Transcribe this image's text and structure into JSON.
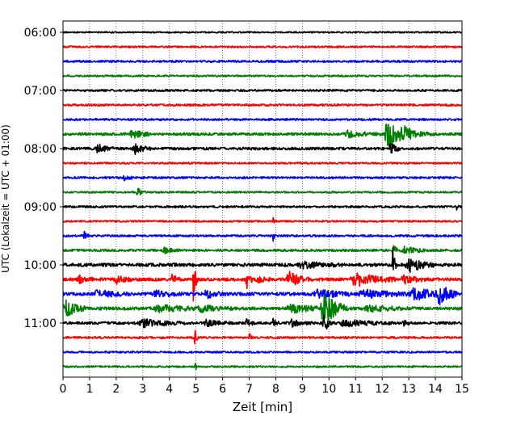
{
  "chart_data": {
    "type": "line",
    "xlabel": "Zeit  [min]",
    "ylabel": "UTC (Lokalzeit = UTC + 01:00)",
    "xlim": [
      0,
      15
    ],
    "x_ticks": [
      "0",
      "1",
      "2",
      "3",
      "4",
      "5",
      "6",
      "7",
      "8",
      "9",
      "10",
      "11",
      "12",
      "13",
      "14",
      "15"
    ],
    "y_tick_labels": [
      "06:00",
      "07:00",
      "08:00",
      "09:00",
      "10:00",
      "11:00"
    ],
    "grid": "vertical dotted lines at each minute",
    "trace_interval_minutes": 15,
    "trace_color_cycle": [
      "#000000",
      "#ff0000",
      "#0000ff",
      "#008000"
    ],
    "traces": [
      {
        "time": "06:00",
        "noise": 0.1,
        "events": []
      },
      {
        "time": "06:15",
        "noise": 0.12,
        "events": []
      },
      {
        "time": "06:30",
        "noise": 0.14,
        "events": []
      },
      {
        "time": "06:45",
        "noise": 0.12,
        "events": []
      },
      {
        "time": "07:00",
        "noise": 0.14,
        "events": []
      },
      {
        "time": "07:15",
        "noise": 0.14,
        "events": []
      },
      {
        "time": "07:30",
        "noise": 0.14,
        "events": []
      },
      {
        "time": "07:45",
        "noise": 0.18,
        "events": [
          {
            "t": 2.6,
            "amp": 0.5,
            "dur": 0.9
          },
          {
            "t": 10.7,
            "amp": 0.4,
            "dur": 1.3
          },
          {
            "t": 12.2,
            "amp": 2.0,
            "dur": 0.9
          },
          {
            "t": 12.8,
            "amp": 0.6,
            "dur": 1.2
          }
        ]
      },
      {
        "time": "08:00",
        "noise": 0.18,
        "events": [
          {
            "t": 1.3,
            "amp": 0.6,
            "dur": 0.6
          },
          {
            "t": 2.7,
            "amp": 0.7,
            "dur": 0.6
          },
          {
            "t": 12.3,
            "amp": 0.8,
            "dur": 0.4
          }
        ]
      },
      {
        "time": "08:15",
        "noise": 0.12,
        "events": []
      },
      {
        "time": "08:30",
        "noise": 0.14,
        "events": [
          {
            "t": 2.3,
            "amp": 0.6,
            "dur": 0.3
          }
        ]
      },
      {
        "time": "08:45",
        "noise": 0.12,
        "events": [
          {
            "t": 2.8,
            "amp": 0.6,
            "dur": 0.3
          }
        ]
      },
      {
        "time": "09:00",
        "noise": 0.14,
        "events": [
          {
            "t": 14.8,
            "amp": 0.6,
            "dur": 0.1
          }
        ]
      },
      {
        "time": "09:15",
        "noise": 0.12,
        "events": [
          {
            "t": 7.9,
            "amp": 0.6,
            "dur": 0.1
          }
        ]
      },
      {
        "time": "09:30",
        "noise": 0.14,
        "events": [
          {
            "t": 0.8,
            "amp": 0.5,
            "dur": 0.2
          },
          {
            "t": 7.9,
            "amp": 0.6,
            "dur": 0.1
          }
        ]
      },
      {
        "time": "09:45",
        "noise": 0.16,
        "events": [
          {
            "t": 3.8,
            "amp": 0.4,
            "dur": 0.6
          },
          {
            "t": 12.4,
            "amp": 0.9,
            "dur": 0.2
          },
          {
            "t": 12.8,
            "amp": 0.6,
            "dur": 0.8
          }
        ]
      },
      {
        "time": "10:00",
        "noise": 0.22,
        "events": [
          {
            "t": 9.0,
            "amp": 0.4,
            "dur": 1.6
          },
          {
            "t": 12.4,
            "amp": 2.2,
            "dur": 0.15
          },
          {
            "t": 13.0,
            "amp": 0.9,
            "dur": 1.0
          }
        ]
      },
      {
        "time": "10:15",
        "noise": 0.22,
        "events": [
          {
            "t": 0.6,
            "amp": 0.5,
            "dur": 0.6
          },
          {
            "t": 2.0,
            "amp": 0.5,
            "dur": 0.6
          },
          {
            "t": 4.1,
            "amp": 0.7,
            "dur": 0.3
          },
          {
            "t": 4.9,
            "amp": 2.8,
            "dur": 0.15
          },
          {
            "t": 6.9,
            "amp": 1.6,
            "dur": 0.2
          },
          {
            "t": 7.3,
            "amp": 0.4,
            "dur": 0.5
          },
          {
            "t": 8.5,
            "amp": 1.0,
            "dur": 0.8
          },
          {
            "t": 11.0,
            "amp": 0.9,
            "dur": 1.5
          },
          {
            "t": 12.8,
            "amp": 0.6,
            "dur": 0.8
          }
        ]
      },
      {
        "time": "10:30",
        "noise": 0.22,
        "events": [
          {
            "t": 1.3,
            "amp": 0.5,
            "dur": 1.2
          },
          {
            "t": 3.5,
            "amp": 0.4,
            "dur": 1.0
          },
          {
            "t": 5.4,
            "amp": 0.6,
            "dur": 0.7
          },
          {
            "t": 9.6,
            "amp": 0.6,
            "dur": 1.3
          },
          {
            "t": 11.3,
            "amp": 0.5,
            "dur": 2.0
          },
          {
            "t": 13.2,
            "amp": 0.8,
            "dur": 1.5
          },
          {
            "t": 14.1,
            "amp": 1.4,
            "dur": 0.7
          }
        ]
      },
      {
        "time": "10:45",
        "noise": 0.22,
        "events": [
          {
            "t": 0.1,
            "amp": 1.2,
            "dur": 0.8
          },
          {
            "t": 3.6,
            "amp": 0.5,
            "dur": 1.5
          },
          {
            "t": 5.2,
            "amp": 0.4,
            "dur": 1.2
          },
          {
            "t": 8.6,
            "amp": 0.5,
            "dur": 1.8
          },
          {
            "t": 9.8,
            "amp": 2.2,
            "dur": 0.9
          },
          {
            "t": 11.5,
            "amp": 0.4,
            "dur": 1.5
          }
        ]
      },
      {
        "time": "11:00",
        "noise": 0.18,
        "events": [
          {
            "t": 3.0,
            "amp": 0.5,
            "dur": 1.6
          },
          {
            "t": 5.4,
            "amp": 0.4,
            "dur": 1.0
          },
          {
            "t": 6.9,
            "amp": 0.6,
            "dur": 0.3
          },
          {
            "t": 7.9,
            "amp": 0.5,
            "dur": 0.2
          },
          {
            "t": 8.6,
            "amp": 0.4,
            "dur": 0.8
          },
          {
            "t": 9.8,
            "amp": 1.5,
            "dur": 0.3
          },
          {
            "t": 10.6,
            "amp": 0.4,
            "dur": 2.0
          },
          {
            "t": 12.8,
            "amp": 0.5,
            "dur": 0.3
          }
        ]
      },
      {
        "time": "11:15",
        "noise": 0.14,
        "events": [
          {
            "t": 4.95,
            "amp": 1.2,
            "dur": 0.12
          },
          {
            "t": 7.0,
            "amp": 0.9,
            "dur": 0.1
          }
        ]
      },
      {
        "time": "11:30",
        "noise": 0.12,
        "events": []
      },
      {
        "time": "11:45",
        "noise": 0.12,
        "events": [
          {
            "t": 4.95,
            "amp": 1.0,
            "dur": 0.1
          }
        ]
      }
    ]
  }
}
